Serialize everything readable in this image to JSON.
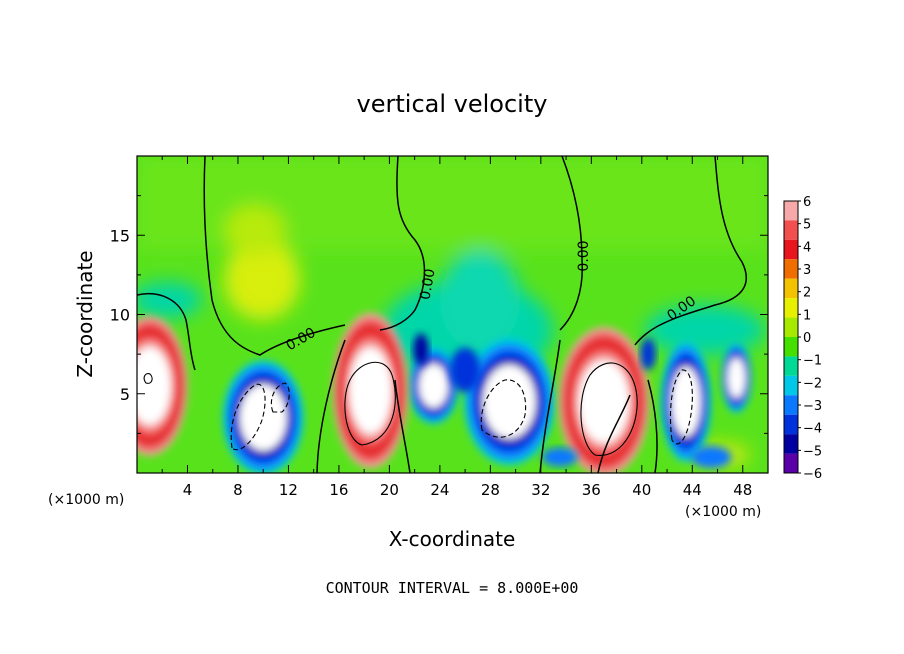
{
  "chart_data": {
    "type": "heatmap",
    "title": "vertical velocity",
    "xlabel": "X-coordinate",
    "ylabel": "Z-coordinate",
    "x_unit_left": "(×1000 m)",
    "x_unit_right": "(×1000 m)",
    "xlim": [
      0,
      50
    ],
    "ylim": [
      0,
      20
    ],
    "x_ticks": [
      "4",
      "8",
      "12",
      "16",
      "20",
      "24",
      "28",
      "32",
      "36",
      "40",
      "44",
      "48"
    ],
    "y_ticks": [
      "5",
      "10",
      "15"
    ],
    "colorbar": {
      "labels": [
        "6",
        "5",
        "4",
        "3",
        "2",
        "1",
        "0",
        "−1",
        "−2",
        "−3",
        "−4",
        "−5",
        "−6"
      ],
      "colors": [
        "#f7a8a8",
        "#f24f4f",
        "#e8141e",
        "#f06e00",
        "#f3c200",
        "#e6f000",
        "#a6ea00",
        "#46e000",
        "#00d896",
        "#00c8e6",
        "#0a78ff",
        "#0032dc",
        "#0000a0",
        "#5a00a8"
      ]
    },
    "contour_label": "0.00",
    "footer": "CONTOUR INTERVAL = 8.000E+00",
    "updrafts": [
      {
        "x": 1.0,
        "z": 5.5,
        "peak": 6
      },
      {
        "x": 18.5,
        "z": 5.2,
        "peak": 6
      },
      {
        "x": 37.0,
        "z": 4.5,
        "peak": 6
      }
    ],
    "downdrafts": [
      {
        "x": 10.0,
        "z": 3.5,
        "peak": -6
      },
      {
        "x": 23.5,
        "z": 5.5,
        "peak": -5
      },
      {
        "x": 29.5,
        "z": 4.5,
        "peak": -6
      },
      {
        "x": 43.5,
        "z": 4.5,
        "peak": -6
      },
      {
        "x": 47.5,
        "z": 6.0,
        "peak": -6
      }
    ]
  }
}
